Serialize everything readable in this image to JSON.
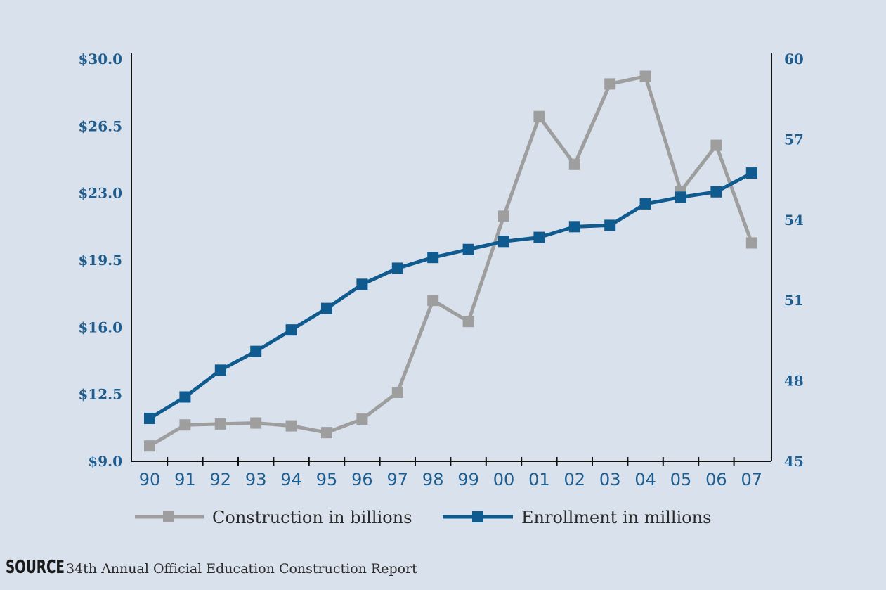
{
  "chart_data": {
    "type": "line",
    "categories": [
      "90",
      "91",
      "92",
      "93",
      "94",
      "95",
      "96",
      "97",
      "98",
      "99",
      "00",
      "01",
      "02",
      "03",
      "04",
      "05",
      "06",
      "07"
    ],
    "y_left": {
      "ylim": [
        9.0,
        30.0
      ],
      "tick_values": [
        9.0,
        12.5,
        16.0,
        19.5,
        23.0,
        26.5,
        30.0
      ],
      "tick_labels": [
        "$9.0",
        "$12.5",
        "$16.0",
        "$19.5",
        "$23.0",
        "$26.5",
        "$30.0"
      ]
    },
    "y_right": {
      "ylim": [
        45,
        60
      ],
      "tick_values": [
        45,
        48,
        51,
        54,
        57,
        60
      ],
      "tick_labels": [
        "45",
        "48",
        "51",
        "54",
        "57",
        "60"
      ]
    },
    "series": [
      {
        "name": "Construction in billions",
        "axis": "left",
        "color": "#9e9e9e",
        "values": [
          9.8,
          10.9,
          10.95,
          11.0,
          10.85,
          10.5,
          11.2,
          12.6,
          17.4,
          16.3,
          21.8,
          27.0,
          24.5,
          28.7,
          29.1,
          23.1,
          25.5,
          20.4
        ]
      },
      {
        "name": "Enrollment in millions",
        "axis": "right",
        "color": "#0f5a8e",
        "values": [
          46.6,
          47.4,
          48.4,
          49.1,
          49.9,
          50.7,
          51.6,
          52.2,
          52.6,
          52.9,
          53.2,
          53.35,
          53.75,
          53.8,
          54.6,
          54.85,
          55.05,
          55.75
        ]
      }
    ],
    "legend_position": "bottom"
  },
  "source": {
    "label": "SOURCE",
    "text": "34th Annual Official Education Construction Report"
  }
}
